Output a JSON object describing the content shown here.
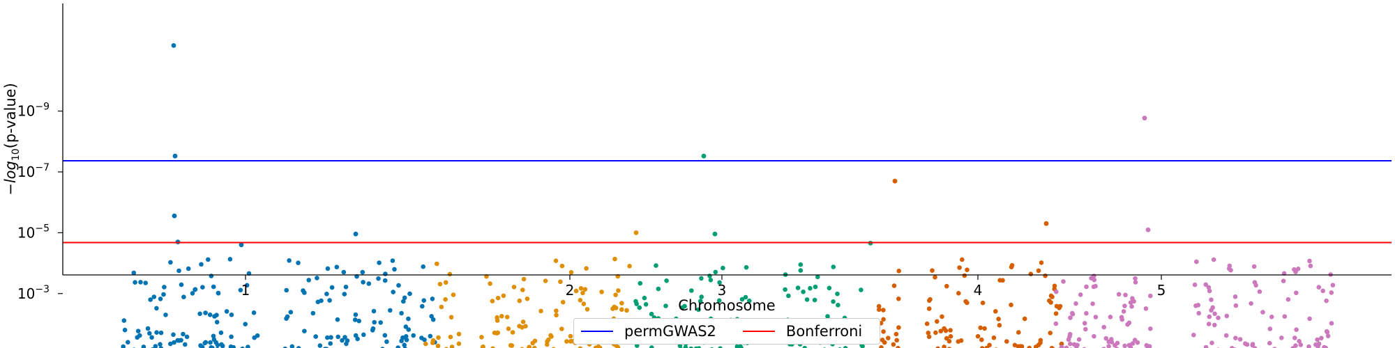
{
  "chart_data": {
    "type": "scatter",
    "title": "",
    "xlabel": "Chromosome",
    "ylabel": "−log10(p-value)",
    "y_scale": "log",
    "ylim": [
      1e-13,
      0.1
    ],
    "ylim_note": "inverted: smaller p-values plotted higher",
    "x_ticks": [
      "1",
      "2",
      "3",
      "4",
      "5"
    ],
    "y_ticks": [
      "10^-9",
      "10^-7",
      "10^-5",
      "10^-3"
    ],
    "grid": false,
    "legend_position": "bottom-center",
    "thresholds": [
      {
        "name": "permGWAS2",
        "p": 4.3e-08,
        "color": "#0000ff"
      },
      {
        "name": "Bonferroni",
        "p": 2.1e-05,
        "color": "#ff0000"
      }
    ],
    "chromosomes": [
      {
        "name": "1",
        "color": "#0173b2"
      },
      {
        "name": "2",
        "color": "#de8f05"
      },
      {
        "name": "3",
        "color": "#029e73"
      },
      {
        "name": "4",
        "color": "#d55e00"
      },
      {
        "name": "5",
        "color": "#cc78bc"
      }
    ],
    "notable_points": [
      {
        "chrom": "1",
        "p": 7e-12
      },
      {
        "chrom": "1",
        "p": 3e-08
      },
      {
        "chrom": "1",
        "p": 2e-05
      },
      {
        "chrom": "1",
        "p": 2.5e-05
      },
      {
        "chrom": "1",
        "p": 1.1e-05
      },
      {
        "chrom": "1",
        "p": 2.8e-06
      },
      {
        "chrom": "2",
        "p": 1e-05
      },
      {
        "chrom": "3",
        "p": 3e-08
      },
      {
        "chrom": "3",
        "p": 1.1e-05
      },
      {
        "chrom": "3",
        "p": 2.2e-05
      },
      {
        "chrom": "4",
        "p": 2e-07
      },
      {
        "chrom": "4",
        "p": 5e-06
      },
      {
        "chrom": "5",
        "p": 1.7e-09
      },
      {
        "chrom": "5",
        "p": 8e-06
      }
    ]
  },
  "legend": {
    "permgwas2_label": "permGWAS2",
    "bonferroni_label": "Bonferroni"
  }
}
